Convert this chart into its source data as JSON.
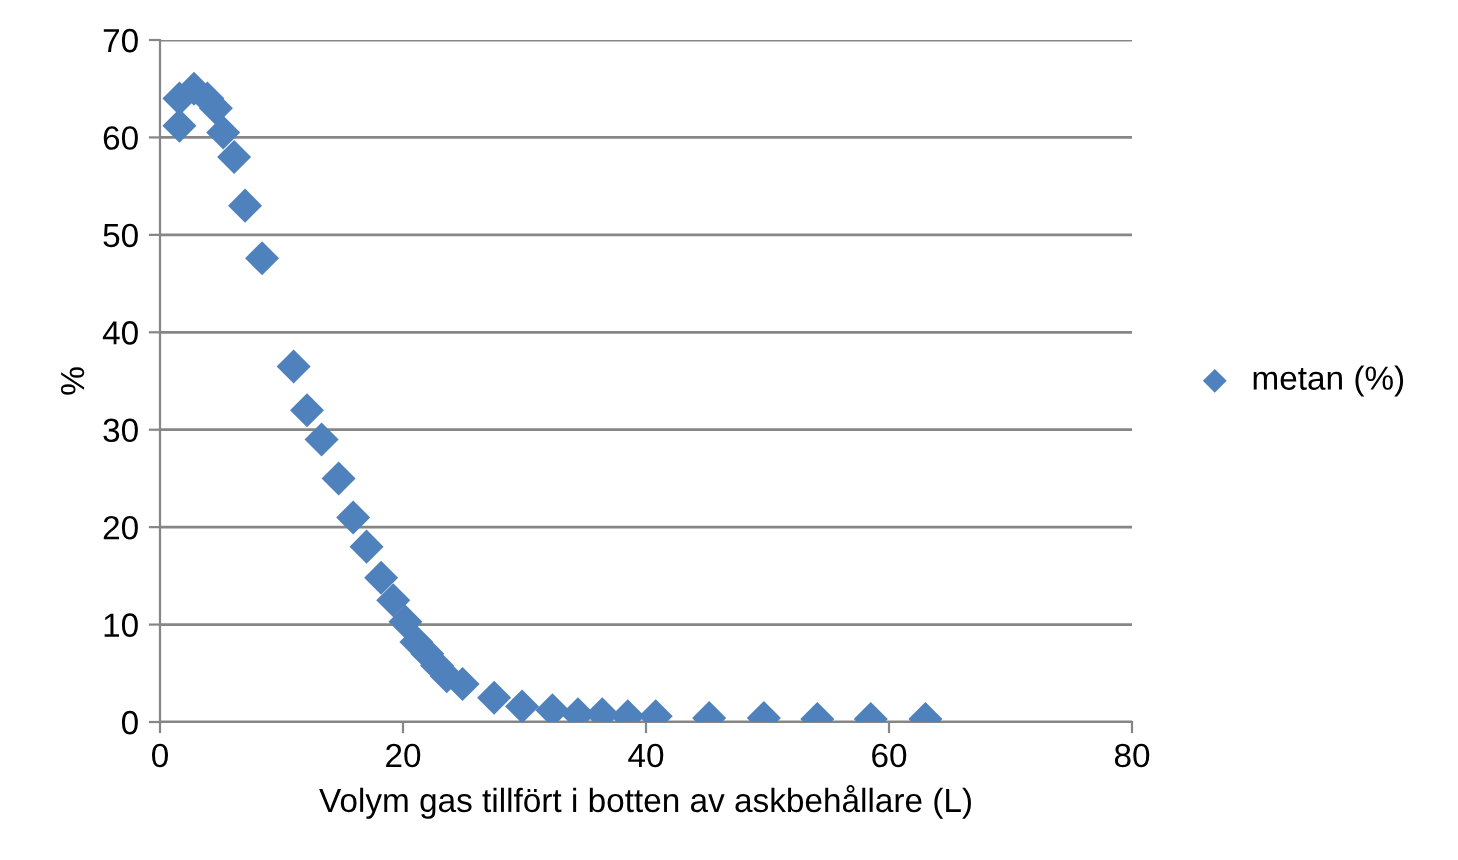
{
  "chart_data": {
    "type": "scatter",
    "xlabel": "Volym gas tillfört i botten av askbehållare (L)",
    "ylabel": "%",
    "xlim": [
      0,
      80
    ],
    "xticks": [
      0,
      20,
      40,
      60,
      80
    ],
    "ylim": [
      0,
      70
    ],
    "yticks": [
      0,
      10,
      20,
      30,
      40,
      50,
      60,
      70
    ],
    "grid": "y",
    "legend": "right",
    "marker": "diamond",
    "series": [
      {
        "name": "metan (%)",
        "color": "#4f81bd",
        "x": [
          1.6,
          1.6,
          2.8,
          3.9,
          4.6,
          5.2,
          6.1,
          7,
          8.4,
          11,
          12.1,
          13.3,
          14.7,
          15.9,
          17,
          18.2,
          19.2,
          20.2,
          21.1,
          22,
          22.8,
          23.6,
          24.9,
          27.5,
          29.8,
          32.3,
          34.4,
          36.4,
          38.5,
          40.8,
          45.2,
          49.7,
          54.1,
          58.5,
          63
        ],
        "values": [
          61.2,
          64,
          65,
          64,
          63,
          60.5,
          58,
          53,
          47.6,
          36.5,
          32,
          29,
          25,
          21,
          18,
          14.8,
          12.5,
          10.3,
          8.2,
          7,
          5.8,
          4.7,
          3.9,
          2.5,
          1.6,
          1.2,
          0.8,
          0.8,
          0.6,
          0.6,
          0.4,
          0.4,
          0.3,
          0.3,
          0.3
        ]
      }
    ]
  }
}
